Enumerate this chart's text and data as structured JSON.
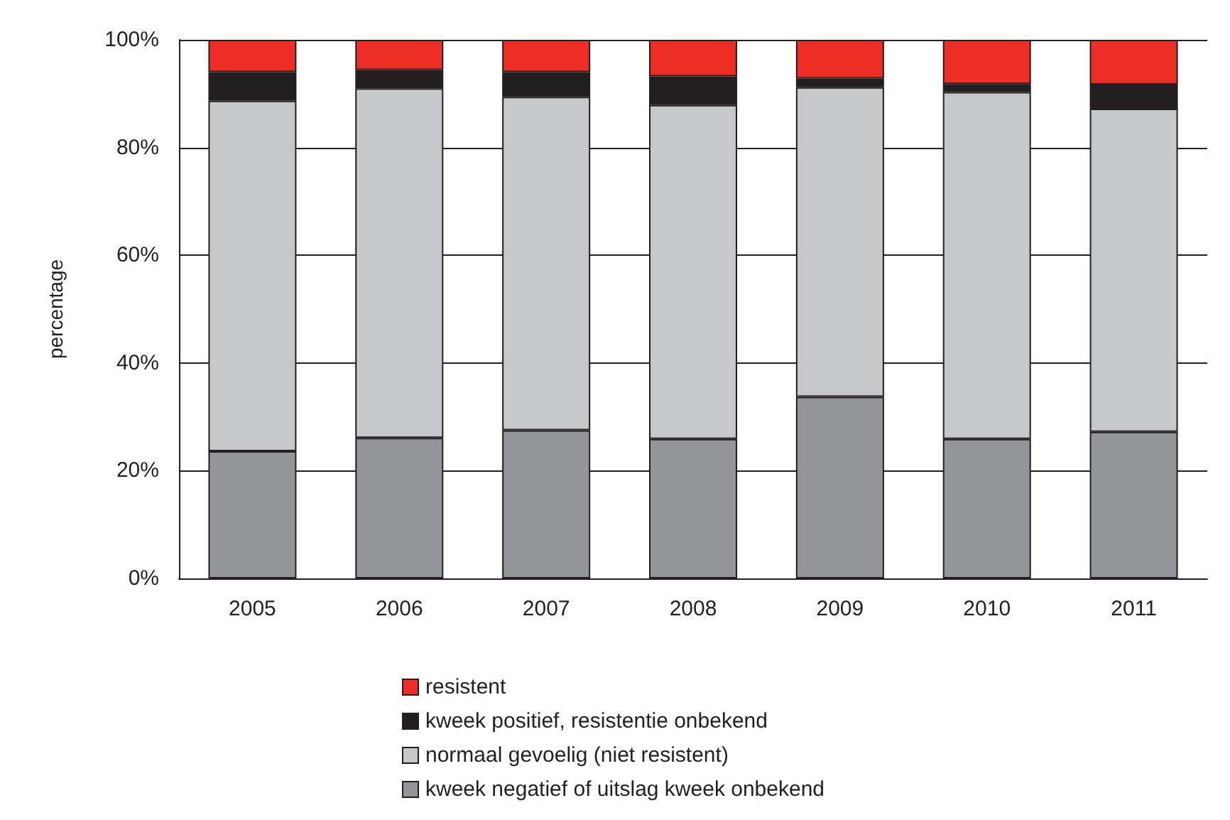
{
  "chart_data": {
    "type": "bar",
    "stacked": true,
    "ylabel": "percentage",
    "categories": [
      "2005",
      "2006",
      "2007",
      "2008",
      "2009",
      "2010",
      "2011"
    ],
    "series": [
      {
        "name": "kweek negatief of uitslag kweek onbekend",
        "color": "#939598",
        "values": [
          23.6,
          26.1,
          27.5,
          25.9,
          33.7,
          25.9,
          27.2
        ]
      },
      {
        "name": "normaal gevoelig (niet resistent)",
        "color": "#c6c7c9",
        "values": [
          65.1,
          64.9,
          61.9,
          62.0,
          57.5,
          64.4,
          60.0
        ]
      },
      {
        "name": "kweek positief, resistentie onbekend",
        "color": "#231f20",
        "values": [
          5.3,
          3.4,
          4.6,
          5.3,
          1.6,
          1.5,
          4.5
        ]
      },
      {
        "name": "resistent",
        "color": "#ee2e24",
        "values": [
          6.0,
          5.6,
          6.0,
          6.8,
          7.2,
          8.2,
          8.3
        ]
      }
    ],
    "ylim": [
      0,
      100
    ],
    "yticks": [
      {
        "value": 0,
        "label": "0%"
      },
      {
        "value": 20,
        "label": "20%"
      },
      {
        "value": 40,
        "label": "40%"
      },
      {
        "value": 60,
        "label": "60%"
      },
      {
        "value": 80,
        "label": "80%"
      },
      {
        "value": 100,
        "label": "100%"
      }
    ],
    "grid": "y",
    "legend": "bottom"
  }
}
